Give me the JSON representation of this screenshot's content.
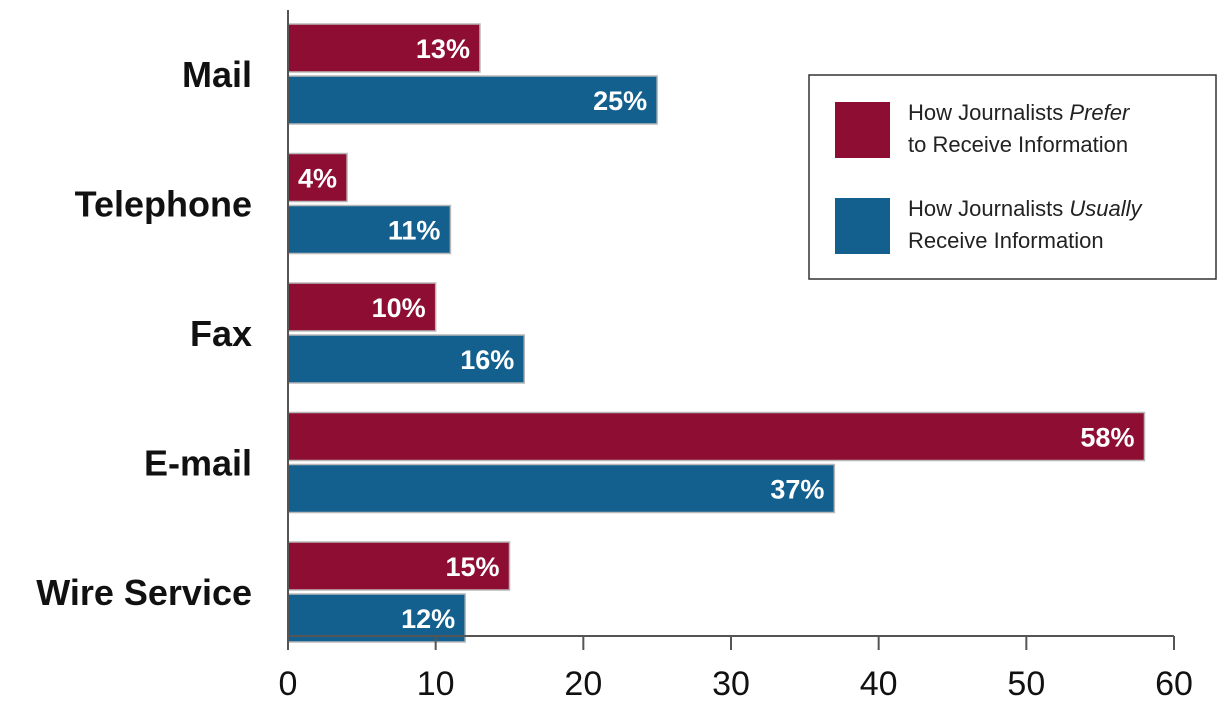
{
  "chart_data": {
    "type": "bar",
    "orientation": "horizontal",
    "title": "",
    "xlabel": "",
    "ylabel": "",
    "categories": [
      "Mail",
      "Telephone",
      "Fax",
      "E-mail",
      "Wire Service"
    ],
    "series": [
      {
        "name": "How Journalists Prefer to Receive Information",
        "legend_lines": [
          [
            {
              "text": "How Journalists ",
              "italic": false
            },
            {
              "text": "Prefer",
              "italic": true
            }
          ],
          [
            {
              "text": "to Receive Information",
              "italic": false
            }
          ]
        ],
        "color": "#8e0d32",
        "values": [
          13,
          4,
          10,
          58,
          15
        ],
        "labels": [
          "13%",
          "4%",
          "10%",
          "58%",
          "15%"
        ]
      },
      {
        "name": "How Journalists Usually Receive Information",
        "legend_lines": [
          [
            {
              "text": "How Journalists ",
              "italic": false
            },
            {
              "text": "Usually",
              "italic": true
            }
          ],
          [
            {
              "text": "Receive Information",
              "italic": false
            }
          ]
        ],
        "color": "#13608f",
        "values": [
          25,
          11,
          16,
          37,
          12
        ],
        "labels": [
          "25%",
          "11%",
          "16%",
          "37%",
          "12%"
        ]
      }
    ],
    "xlim": [
      0,
      60
    ],
    "xticks": [
      0,
      10,
      20,
      30,
      40,
      50,
      60
    ],
    "grid": false,
    "legend_position": "top-right"
  }
}
